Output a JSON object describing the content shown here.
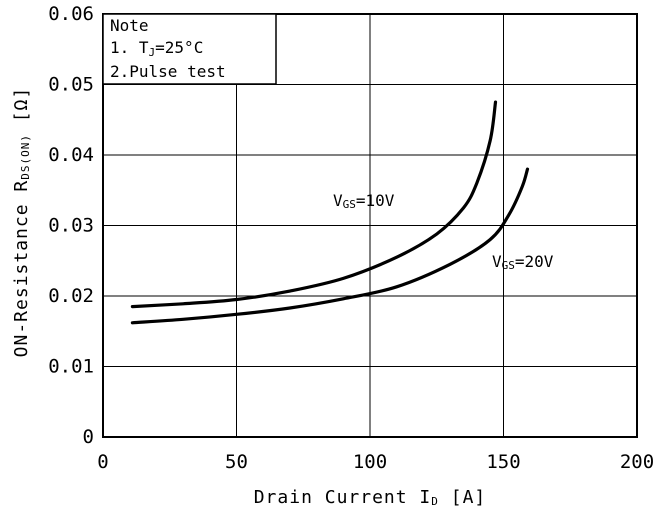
{
  "chart_data": {
    "type": "line",
    "xlabel": {
      "main": "Drain Current I",
      "sub": "D",
      "unit": " [A]"
    },
    "ylabel": {
      "main": "ON-Resistance R",
      "sub": "DS(ON)",
      "unit": " [Ω]"
    },
    "xlim": [
      0,
      200
    ],
    "ylim": [
      0,
      0.06
    ],
    "x_ticks": [
      "0",
      "50",
      "100",
      "150",
      "200"
    ],
    "x_tick_values": [
      0,
      50,
      100,
      150,
      200
    ],
    "y_ticks": [
      "0",
      "0.01",
      "0.02",
      "0.03",
      "0.04",
      "0.05",
      "0.06"
    ],
    "y_tick_values": [
      0,
      0.01,
      0.02,
      0.03,
      0.04,
      0.05,
      0.06
    ],
    "grid": true,
    "note": {
      "title": "Note",
      "line1": {
        "prefix": "1. T",
        "sub": "J",
        "suffix": "=25°C"
      },
      "line2": "2.Pulse test"
    },
    "series": [
      {
        "name": {
          "prefix": "V",
          "sub": "GS",
          "suffix": "=10V"
        },
        "x": [
          11,
          30,
          50,
          70,
          90,
          110,
          125,
          135,
          140,
          145,
          147
        ],
        "y": [
          0.0185,
          0.0189,
          0.0195,
          0.0207,
          0.0225,
          0.0255,
          0.0288,
          0.0325,
          0.036,
          0.042,
          0.0475
        ]
      },
      {
        "name": {
          "prefix": "V",
          "sub": "GS",
          "suffix": "=20V"
        },
        "x": [
          11,
          30,
          50,
          70,
          90,
          110,
          130,
          145,
          152,
          157,
          159
        ],
        "y": [
          0.0162,
          0.0167,
          0.0174,
          0.0183,
          0.0196,
          0.0213,
          0.0245,
          0.028,
          0.0315,
          0.0355,
          0.038
        ]
      }
    ]
  }
}
